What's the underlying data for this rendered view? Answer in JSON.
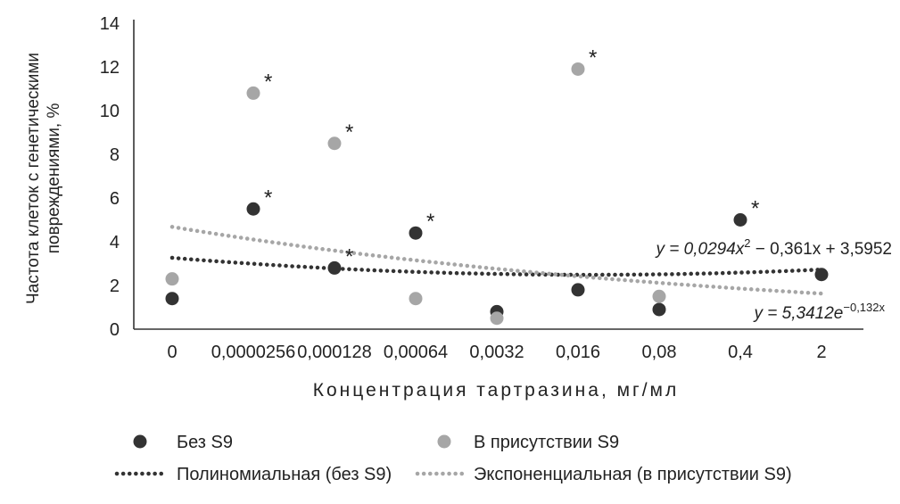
{
  "chart_data": {
    "type": "scatter",
    "categories": [
      "0",
      "0,0000256",
      "0,000128",
      "0,00064",
      "0,0032",
      "0,016",
      "0,08",
      "0,4",
      "2"
    ],
    "ylabel_lines": [
      "Частота клеток с генетическими",
      "повреждениями, %"
    ],
    "xlabel": "Концентрация тартразина, мг/мл",
    "ylim": [
      0,
      14
    ],
    "yticks": [
      0,
      2,
      4,
      6,
      8,
      10,
      12,
      14
    ],
    "grid": false,
    "legend_position": "bottom",
    "series": [
      {
        "name": "Без S9",
        "color": "#333333",
        "values": [
          1.4,
          5.5,
          2.8,
          4.4,
          0.8,
          1.8,
          0.9,
          5.0,
          2.5
        ],
        "significant": [
          false,
          true,
          true,
          true,
          false,
          false,
          false,
          true,
          false
        ]
      },
      {
        "name": "В присутствии S9",
        "color": "#a6a6a6",
        "values": [
          2.3,
          10.8,
          8.5,
          1.4,
          0.5,
          11.9,
          1.5,
          null,
          null
        ],
        "significant": [
          false,
          true,
          true,
          false,
          false,
          true,
          false,
          false,
          false
        ]
      }
    ],
    "trendlines": [
      {
        "name": "Полиномиальная (без S9)",
        "color": "#333333",
        "type": "polynomial",
        "coefficients": [
          0.0294,
          -0.361,
          3.5952
        ],
        "equation": {
          "prefix": "y = 0,0294x",
          "sup": "2",
          "suffix": " − 0,361x + 3,5952"
        }
      },
      {
        "name": "Экспоненциальная (в присутствии S9)",
        "color": "#a6a6a6",
        "type": "exponential",
        "coefficient": 5.3412,
        "exponent": -0.132,
        "equation": {
          "prefix": "y = 5,3412e",
          "sup": "−0,132x",
          "suffix": ""
        }
      }
    ],
    "significance_marker": "*"
  }
}
